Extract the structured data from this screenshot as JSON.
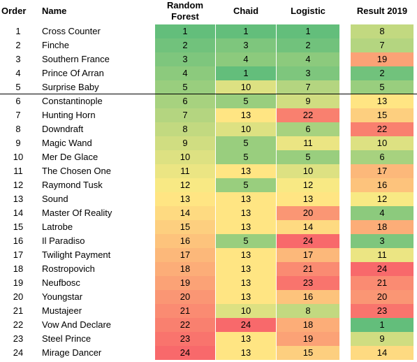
{
  "headers": {
    "order": "Order",
    "name": "Name",
    "random_forest": "Random Forest",
    "chaid": "Chaid",
    "logistic": "Logistic",
    "result": "Result 2019"
  },
  "color_scale": {
    "low": "#63BE7B",
    "mid": "#FFEB84",
    "high": "#F8696B"
  },
  "rows": [
    {
      "order": "1",
      "name": "Cross Counter",
      "rf": 1,
      "chaid": 1,
      "logistic": 1,
      "result": 8
    },
    {
      "order": "2",
      "name": "Finche",
      "rf": 2,
      "chaid": 3,
      "logistic": 2,
      "result": 7
    },
    {
      "order": "3",
      "name": "Southern France",
      "rf": 3,
      "chaid": 4,
      "logistic": 4,
      "result": 19
    },
    {
      "order": "4",
      "name": "Prince Of Arran",
      "rf": 4,
      "chaid": 1,
      "logistic": 3,
      "result": 2
    },
    {
      "order": "5",
      "name": "Surprise Baby",
      "rf": 5,
      "chaid": 10,
      "logistic": 7,
      "result": 5
    },
    {
      "order": "6",
      "name": "Constantinople",
      "rf": 6,
      "chaid": 5,
      "logistic": 9,
      "result": 13
    },
    {
      "order": "7",
      "name": "Hunting Horn",
      "rf": 7,
      "chaid": 13,
      "logistic": 22,
      "result": 15
    },
    {
      "order": "8",
      "name": "Downdraft",
      "rf": 8,
      "chaid": 10,
      "logistic": 6,
      "result": 22
    },
    {
      "order": "9",
      "name": "Magic Wand",
      "rf": 9,
      "chaid": 5,
      "logistic": 11,
      "result": 10
    },
    {
      "order": "10",
      "name": "Mer De Glace",
      "rf": 10,
      "chaid": 5,
      "logistic": 5,
      "result": 6
    },
    {
      "order": "11",
      "name": "The Chosen One",
      "rf": 11,
      "chaid": 13,
      "logistic": 10,
      "result": 17
    },
    {
      "order": "12",
      "name": "Raymond Tusk",
      "rf": 12,
      "chaid": 5,
      "logistic": 12,
      "result": 16
    },
    {
      "order": "13",
      "name": "Sound",
      "rf": 13,
      "chaid": 13,
      "logistic": 13,
      "result": 12
    },
    {
      "order": "14",
      "name": "Master Of Reality",
      "rf": 14,
      "chaid": 13,
      "logistic": 20,
      "result": 4
    },
    {
      "order": "15",
      "name": "Latrobe",
      "rf": 15,
      "chaid": 13,
      "logistic": 14,
      "result": 18
    },
    {
      "order": "16",
      "name": "Il Paradiso",
      "rf": 16,
      "chaid": 5,
      "logistic": 24,
      "result": 3
    },
    {
      "order": "17",
      "name": "Twilight Payment",
      "rf": 17,
      "chaid": 13,
      "logistic": 17,
      "result": 11
    },
    {
      "order": "18",
      "name": "Rostropovich",
      "rf": 18,
      "chaid": 13,
      "logistic": 21,
      "result": 24
    },
    {
      "order": "19",
      "name": "Neufbosc",
      "rf": 19,
      "chaid": 13,
      "logistic": 23,
      "result": 21
    },
    {
      "order": "20",
      "name": "Youngstar",
      "rf": 20,
      "chaid": 13,
      "logistic": 16,
      "result": 20
    },
    {
      "order": "21",
      "name": "Mustajeer",
      "rf": 21,
      "chaid": 10,
      "logistic": 8,
      "result": 23
    },
    {
      "order": "22",
      "name": "Vow And Declare",
      "rf": 22,
      "chaid": 24,
      "logistic": 18,
      "result": 1
    },
    {
      "order": "23",
      "name": "Steel Prince",
      "rf": 23,
      "chaid": 13,
      "logistic": 19,
      "result": 9
    },
    {
      "order": "24",
      "name": "Mirage Dancer",
      "rf": 24,
      "chaid": 13,
      "logistic": 15,
      "result": 14
    }
  ]
}
